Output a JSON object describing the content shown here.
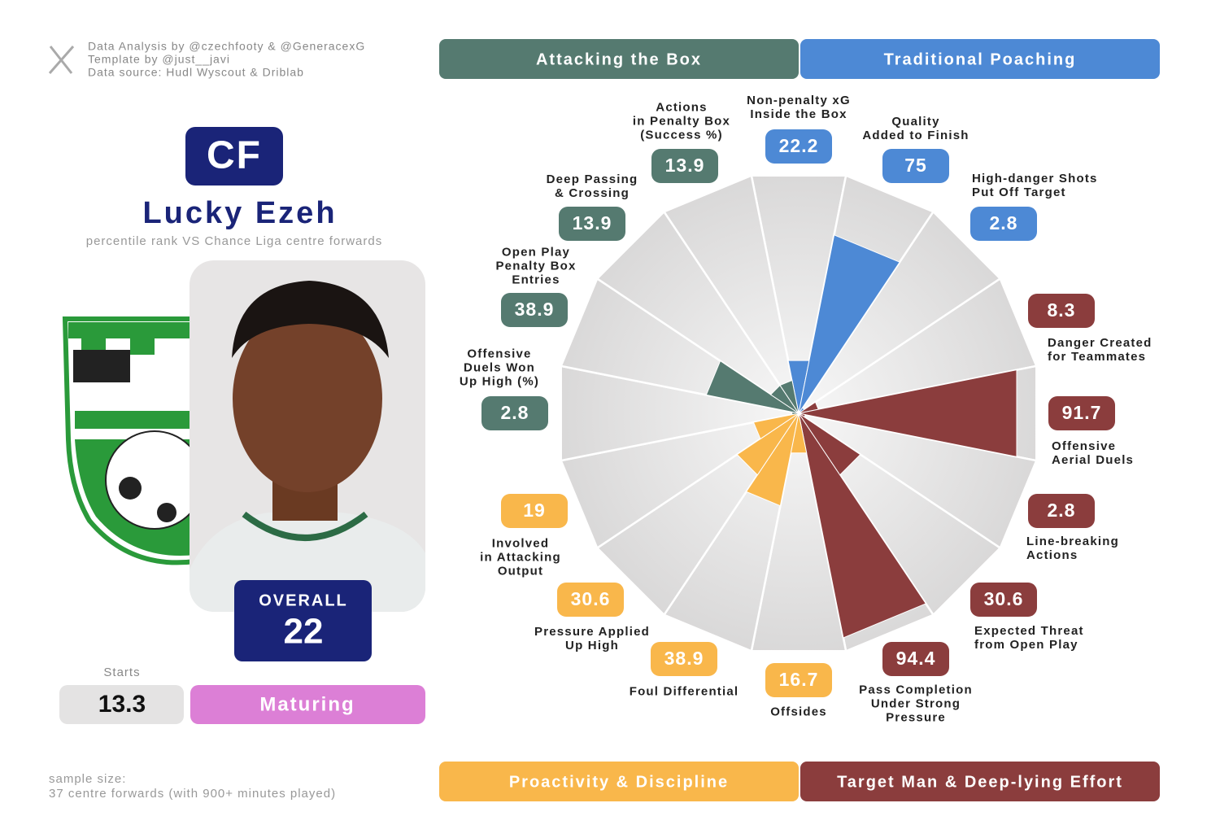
{
  "credits": [
    "Data Analysis by @czechfooty & @GeneracexG",
    "Template by @just__javi",
    "Data source: Hudl Wyscout & Driblab"
  ],
  "player": {
    "position": "CF",
    "name": "Lucky Ezeh",
    "subtitle": "percentile rank VS Chance Liga centre forwards",
    "overall_label": "OVERALL",
    "overall": 22,
    "starts_label": "Starts",
    "starts": 13.3,
    "status": "Maturing"
  },
  "sample_size": [
    "sample size:",
    "37 centre forwards (with 900+ minutes played)"
  ],
  "chart_data": {
    "type": "pizza",
    "ylim": [
      0,
      100
    ],
    "series": [
      {
        "name": "Traditional Poaching",
        "color": "#4d89d5",
        "categories": [
          "Non-penalty xG\nInside the Box",
          "Quality\nAdded to Finish",
          "High-danger Shots\nPut Off Target"
        ],
        "values": [
          22.2,
          75,
          2.8
        ]
      },
      {
        "name": "Target Man & Deep-lying Effort",
        "color": "#8b3d3d",
        "categories": [
          "Danger Created\nfor Teammates",
          "Offensive\nAerial Duels",
          "Line-breaking\nActions",
          "Expected Threat\nfrom Open Play",
          "Pass Completion\nUnder Strong\nPressure"
        ],
        "values": [
          8.3,
          91.7,
          2.8,
          30.6,
          94.4
        ]
      },
      {
        "name": "Proactivity & Discipline",
        "color": "#f9b74b",
        "categories": [
          "Offsides",
          "Foul Differential",
          "Pressure Applied\nUp High",
          "Involved\nin Attacking\nOutput"
        ],
        "values": [
          16.7,
          38.9,
          30.6,
          19
        ]
      },
      {
        "name": "Attacking the Box",
        "color": "#557a70",
        "categories": [
          "Offensive\nDuels Won\nUp High (%)",
          "Open Play\nPenalty Box\nEntries",
          "Deep Passing\n& Crossing",
          "Actions\nin Penalty Box\n(Success %)"
        ],
        "values": [
          2.8,
          38.9,
          13.9,
          13.9
        ]
      }
    ]
  }
}
